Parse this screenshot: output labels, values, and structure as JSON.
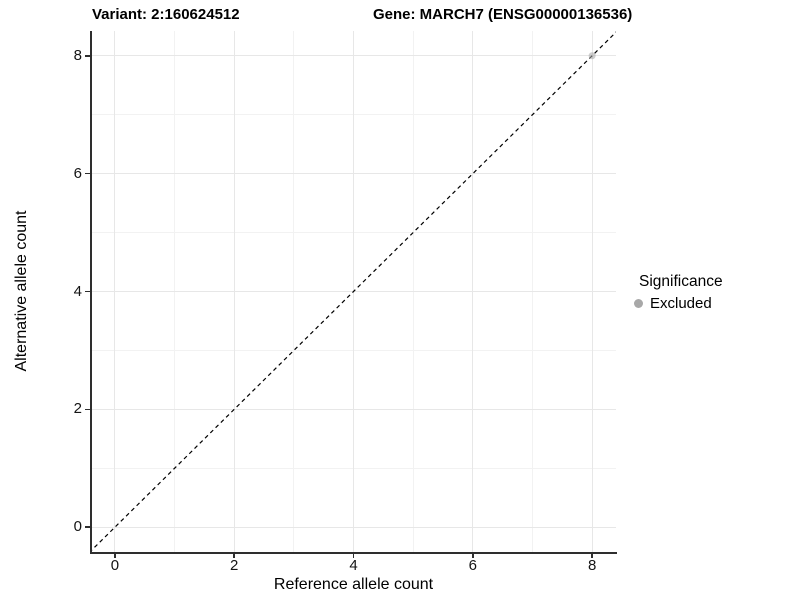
{
  "header": {
    "variant_title": "Variant: 2:160624512",
    "gene_title": "Gene: MARCH7 (ENSG00000136536)"
  },
  "chart_data": {
    "type": "scatter",
    "title_left": "Variant: 2:160624512",
    "title_right": "Gene: MARCH7 (ENSG00000136536)",
    "xlabel": "Reference allele count",
    "ylabel": "Alternative allele count",
    "xlim": [
      -0.4,
      8.4
    ],
    "ylim": [
      -0.42,
      8.42
    ],
    "x_ticks": [
      0,
      2,
      4,
      6,
      8
    ],
    "y_ticks": [
      0,
      2,
      4,
      6,
      8
    ],
    "x_minor_gridlines": [
      1,
      3,
      5,
      7
    ],
    "y_minor_gridlines": [
      1,
      3,
      5,
      7
    ],
    "grid": "major and minor, light gray on white",
    "identity_line": {
      "equation": "y = x",
      "slope": 1,
      "intercept": 0,
      "style": "dashed",
      "color": "#000000"
    },
    "series": [
      {
        "name": "Excluded",
        "color": "#a8a8a8",
        "opacity": 0.55,
        "point_radius": 3.5,
        "points": [
          [
            8,
            8
          ]
        ]
      }
    ],
    "legend": {
      "title": "Significance",
      "position": "right",
      "items": [
        {
          "label": "Excluded",
          "color": "#a8a8a8"
        }
      ]
    },
    "colors": {
      "background": "#ffffff",
      "axis_line": "#2e2e2e",
      "major_grid": "#e7e7e7",
      "minor_grid": "#f2f2f2",
      "text": "#000000"
    }
  }
}
